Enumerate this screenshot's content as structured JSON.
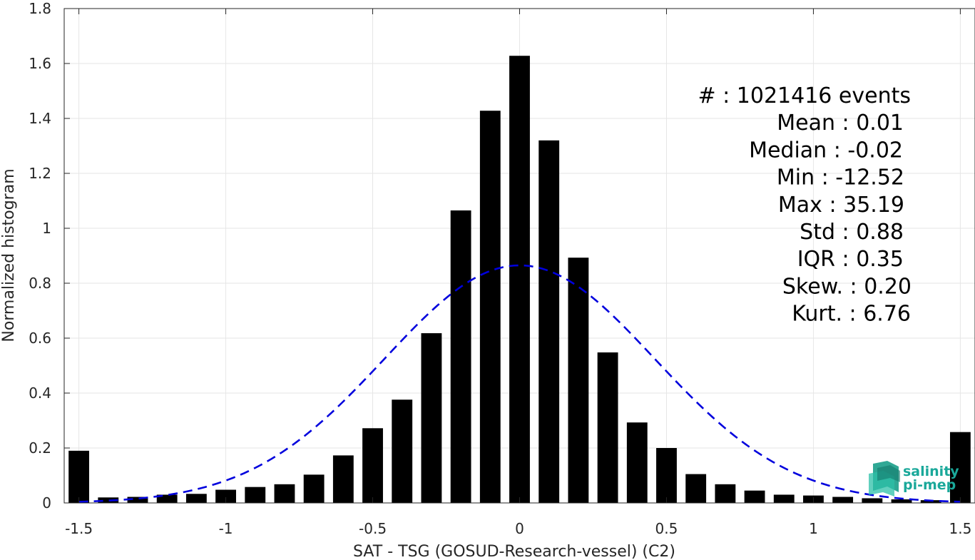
{
  "chart_data": {
    "type": "bar",
    "xlabel": "SAT - TSG (GOSUD-Research-vessel) (C2)",
    "ylabel": "Normalized histogram",
    "xlim": [
      -1.55,
      1.55
    ],
    "ylim": [
      0,
      1.8
    ],
    "xticks": [
      -1.5,
      -1,
      -0.5,
      0,
      0.5,
      1,
      1.5
    ],
    "xtick_labels": [
      "-1.5",
      "-1",
      "-0.5",
      "0",
      "0.5",
      "1",
      "1.5"
    ],
    "yticks": [
      0,
      0.2,
      0.4,
      0.6,
      0.8,
      1,
      1.2,
      1.4,
      1.6,
      1.8
    ],
    "ytick_labels": [
      "0",
      "0.2",
      "0.4",
      "0.6",
      "0.8",
      "1",
      "1.2",
      "1.4",
      "1.6",
      "1.8"
    ],
    "grid": true,
    "bar_width": 0.07,
    "bars": [
      {
        "x": -1.5,
        "y": 0.19
      },
      {
        "x": -1.4,
        "y": 0.02
      },
      {
        "x": -1.3,
        "y": 0.022
      },
      {
        "x": -1.2,
        "y": 0.03
      },
      {
        "x": -1.1,
        "y": 0.033
      },
      {
        "x": -1.0,
        "y": 0.048
      },
      {
        "x": -0.9,
        "y": 0.058
      },
      {
        "x": -0.8,
        "y": 0.068
      },
      {
        "x": -0.7,
        "y": 0.103
      },
      {
        "x": -0.6,
        "y": 0.173
      },
      {
        "x": -0.5,
        "y": 0.272
      },
      {
        "x": -0.4,
        "y": 0.376
      },
      {
        "x": -0.3,
        "y": 0.618
      },
      {
        "x": -0.2,
        "y": 1.065
      },
      {
        "x": -0.1,
        "y": 1.428
      },
      {
        "x": 0.0,
        "y": 1.628
      },
      {
        "x": 0.1,
        "y": 1.32
      },
      {
        "x": 0.2,
        "y": 0.893
      },
      {
        "x": 0.3,
        "y": 0.548
      },
      {
        "x": 0.4,
        "y": 0.293
      },
      {
        "x": 0.5,
        "y": 0.2
      },
      {
        "x": 0.6,
        "y": 0.105
      },
      {
        "x": 0.7,
        "y": 0.068
      },
      {
        "x": 0.8,
        "y": 0.045
      },
      {
        "x": 0.9,
        "y": 0.03
      },
      {
        "x": 1.0,
        "y": 0.027
      },
      {
        "x": 1.1,
        "y": 0.022
      },
      {
        "x": 1.2,
        "y": 0.017
      },
      {
        "x": 1.3,
        "y": 0.013
      },
      {
        "x": 1.4,
        "y": 0.01
      },
      {
        "x": 1.5,
        "y": 0.258
      }
    ],
    "fit_curve": {
      "style": "dashed",
      "color": "#0000dd",
      "mean": 0.0,
      "std": 0.46,
      "peak": 0.865,
      "x_range": [
        -1.5,
        1.5
      ]
    },
    "stats_lines": [
      "#  : 1021416 events",
      "Mean : 0.01",
      "Median : -0.02",
      "Min : -12.52",
      "Max : 35.19",
      "Std : 0.88",
      "IQR : 0.35",
      "Skew. : 0.20",
      "Kurt. : 6.76"
    ],
    "colors": {
      "bars": "#000000",
      "grid": "#e6e6e6",
      "axis": "#262626"
    }
  },
  "logo": {
    "line1": "salinity",
    "line2": "pi-mep"
  }
}
